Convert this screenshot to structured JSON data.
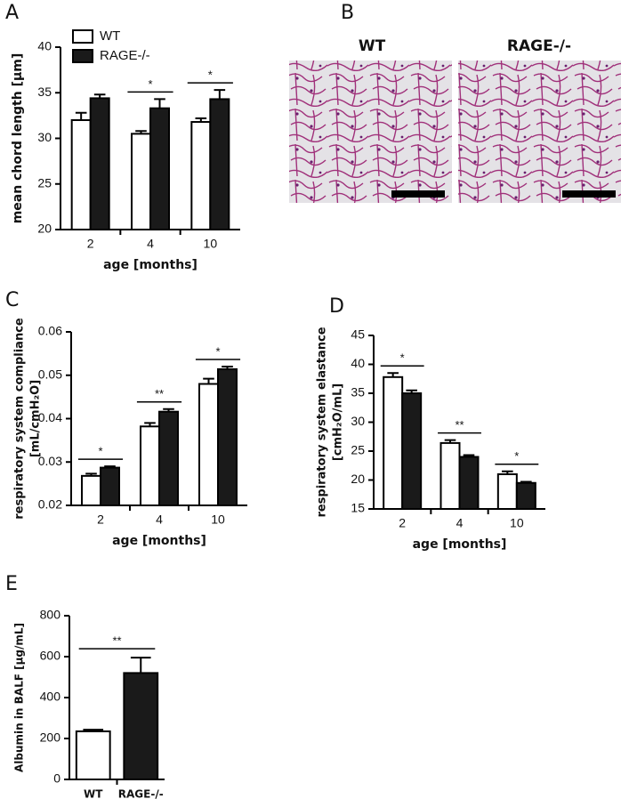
{
  "chart_data": [
    {
      "type": "bar",
      "panel": "A",
      "categories": [
        "2",
        "4",
        "10"
      ],
      "series": [
        {
          "name": "WT",
          "color": "#ffffff",
          "values": [
            32.0,
            30.5,
            31.8
          ],
          "errors": [
            0.8,
            0.3,
            0.4
          ]
        },
        {
          "name": "RAGE-/-",
          "color": "#1a1a1a",
          "values": [
            34.4,
            33.3,
            34.3
          ],
          "errors": [
            0.4,
            1.0,
            1.0
          ]
        }
      ],
      "ylim": [
        20,
        40
      ],
      "yticks": [
        20,
        25,
        30,
        35,
        40
      ],
      "ylabel": [
        "mean chord length [µm]"
      ],
      "xlabel": "age [months]",
      "significance": [
        null,
        "*",
        "*"
      ],
      "legend": "upper left"
    },
    {
      "type": "bar",
      "panel": "C",
      "categories": [
        "2",
        "4",
        "10"
      ],
      "series": [
        {
          "name": "WT",
          "color": "#ffffff",
          "values": [
            0.0268,
            0.0382,
            0.048
          ],
          "errors": [
            0.0005,
            0.0008,
            0.0012
          ]
        },
        {
          "name": "RAGE-/-",
          "color": "#1a1a1a",
          "values": [
            0.0287,
            0.0416,
            0.0514
          ],
          "errors": [
            0.0003,
            0.0006,
            0.0006
          ]
        }
      ],
      "ylim": [
        0.02,
        0.06
      ],
      "yticks": [
        0.02,
        0.03,
        0.04,
        0.05,
        0.06
      ],
      "ylabel": [
        "respiratory system compliance",
        "[mL/cmH₂O]"
      ],
      "xlabel": "age [months]",
      "significance": [
        "*",
        "**",
        "*"
      ]
    },
    {
      "type": "bar",
      "panel": "D",
      "categories": [
        "2",
        "4",
        "10"
      ],
      "series": [
        {
          "name": "WT",
          "color": "#ffffff",
          "values": [
            37.8,
            26.4,
            21.0
          ],
          "errors": [
            0.7,
            0.5,
            0.5
          ]
        },
        {
          "name": "RAGE-/-",
          "color": "#1a1a1a",
          "values": [
            35.0,
            24.0,
            19.5
          ],
          "errors": [
            0.5,
            0.3,
            0.2
          ]
        }
      ],
      "ylim": [
        15,
        45
      ],
      "yticks": [
        15,
        20,
        25,
        30,
        35,
        40,
        45
      ],
      "ylabel": [
        "respiratory system elastance",
        "[cmH₂O/mL]"
      ],
      "xlabel": "age [months]",
      "significance": [
        "*",
        "**",
        "*"
      ]
    },
    {
      "type": "bar",
      "panel": "E",
      "categories": [
        "WT",
        "RAGE-/-"
      ],
      "series": [
        {
          "colors": [
            "#ffffff",
            "#1a1a1a"
          ],
          "values": [
            235,
            520
          ],
          "errors": [
            8,
            75
          ]
        }
      ],
      "ylim": [
        0,
        800
      ],
      "yticks": [
        0,
        200,
        400,
        600,
        800
      ],
      "ylabel": [
        "Albumin in BALF [µg/mL]"
      ],
      "significance_all": "**"
    }
  ],
  "images": {
    "panel": "B",
    "titles": [
      "WT",
      "RAGE-/-"
    ]
  }
}
